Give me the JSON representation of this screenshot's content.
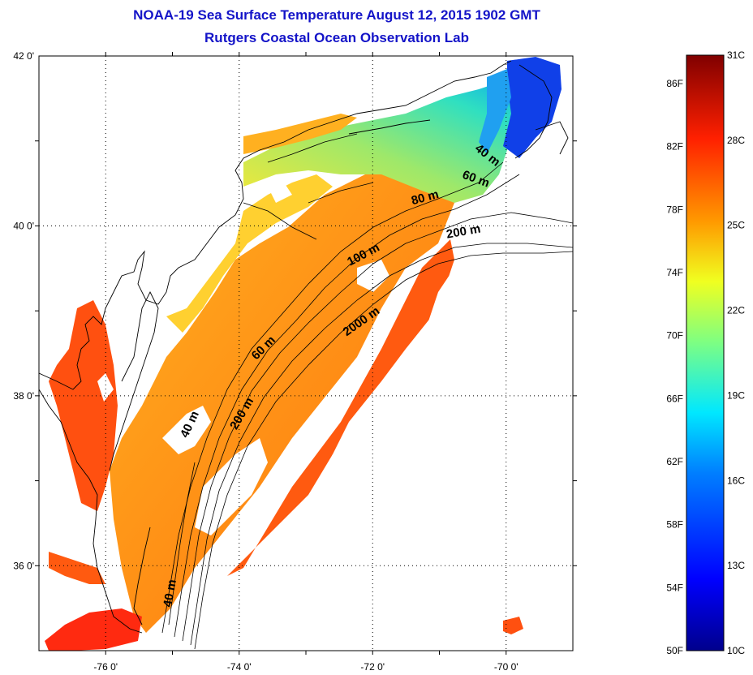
{
  "title": {
    "line1": "NOAA-19 Sea Surface Temperature August 12, 2015 1902 GMT",
    "line2": "Rutgers Coastal Ocean Observation Lab"
  },
  "map": {
    "lon_range": [
      -77,
      -69
    ],
    "lat_range": [
      35,
      42
    ],
    "lon_ticks": [
      {
        "value": -76,
        "label": "-76 0'"
      },
      {
        "value": -74,
        "label": "-74 0'"
      },
      {
        "value": -72,
        "label": "-72 0'"
      },
      {
        "value": -70,
        "label": "-70 0'"
      }
    ],
    "lat_ticks": [
      {
        "value": 42,
        "label": "42 0'"
      },
      {
        "value": 40,
        "label": "40 0'"
      },
      {
        "value": 38,
        "label": "38 0'"
      },
      {
        "value": 36,
        "label": "36 0'"
      }
    ],
    "contour_labels": [
      "40 m",
      "60 m",
      "80 m",
      "200 m",
      "100 m",
      "2000 m",
      "60 m",
      "200 m",
      "40 m",
      "40 m"
    ]
  },
  "colorbar": {
    "fahrenheit_labels": [
      "86F",
      "82F",
      "78F",
      "74F",
      "70F",
      "66F",
      "62F",
      "58F",
      "54F",
      "50F"
    ],
    "celsius_labels": [
      "31C",
      "28C",
      "25C",
      "22C",
      "19C",
      "16C",
      "13C",
      "10C"
    ],
    "colors": [
      "#000080",
      "#0000ff",
      "#0080ff",
      "#00ffff",
      "#80ff80",
      "#ffff00",
      "#ff8000",
      "#ff0000",
      "#800000"
    ]
  }
}
